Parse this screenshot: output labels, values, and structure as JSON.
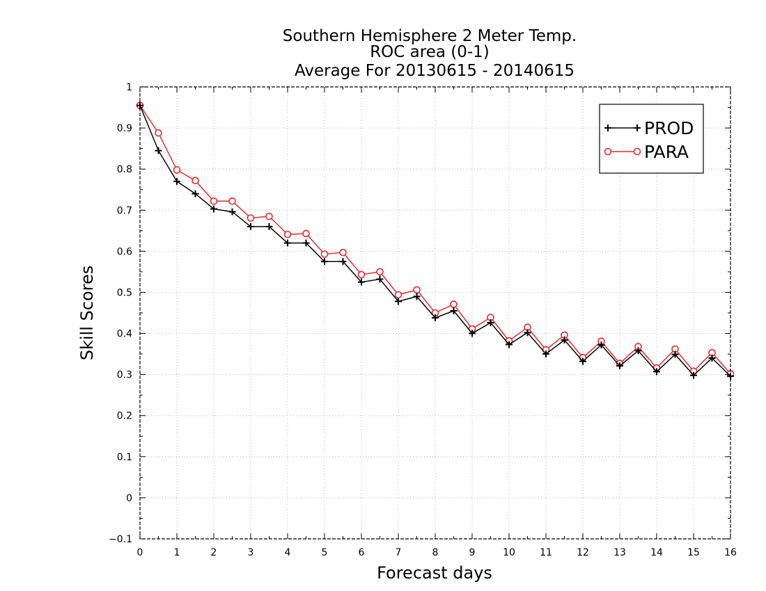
{
  "chart_data": {
    "type": "line",
    "title_lines": [
      "Southern Hemisphere 2 Meter Temp.",
      "ROC area (0-1)",
      "Average For 20130615 - 20140615"
    ],
    "xlabel": "Forecast days",
    "ylabel": "Skill Scores",
    "xlim": [
      0,
      16
    ],
    "ylim": [
      -0.1,
      1
    ],
    "x_ticks": [
      "0",
      "1",
      "2",
      "3",
      "4",
      "5",
      "6",
      "7",
      "8",
      "9",
      "10",
      "11",
      "12",
      "13",
      "14",
      "15",
      "16"
    ],
    "y_ticks": [
      "−0.1",
      "0",
      "0.1",
      "0.2",
      "0.3",
      "0.4",
      "0.5",
      "0.6",
      "0.7",
      "0.8",
      "0.9",
      "1"
    ],
    "grid": true,
    "legend_position": "top-right",
    "x": [
      0,
      0.5,
      1,
      1.5,
      2,
      2.5,
      3,
      3.5,
      4,
      4.5,
      5,
      5.5,
      6,
      6.5,
      7,
      7.5,
      8,
      8.5,
      9,
      9.5,
      10,
      10.5,
      11,
      11.5,
      12,
      12.5,
      13,
      13.5,
      14,
      14.5,
      15,
      15.5,
      16
    ],
    "series": [
      {
        "name": "PROD",
        "color": "#000000",
        "marker": "plus",
        "values": [
          0.955,
          0.845,
          0.77,
          0.74,
          0.703,
          0.696,
          0.66,
          0.66,
          0.62,
          0.62,
          0.575,
          0.575,
          0.525,
          0.532,
          0.478,
          0.49,
          0.438,
          0.455,
          0.4,
          0.426,
          0.373,
          0.402,
          0.35,
          0.384,
          0.332,
          0.372,
          0.321,
          0.358,
          0.307,
          0.349,
          0.298,
          0.34,
          0.296
        ]
      },
      {
        "name": "PARA",
        "color": "#e8282e",
        "marker": "circle",
        "values": [
          0.955,
          0.888,
          0.798,
          0.772,
          0.722,
          0.722,
          0.681,
          0.685,
          0.641,
          0.643,
          0.593,
          0.597,
          0.543,
          0.55,
          0.494,
          0.506,
          0.45,
          0.471,
          0.411,
          0.439,
          0.382,
          0.415,
          0.36,
          0.396,
          0.341,
          0.381,
          0.327,
          0.368,
          0.316,
          0.362,
          0.308,
          0.353,
          0.302
        ]
      }
    ]
  }
}
